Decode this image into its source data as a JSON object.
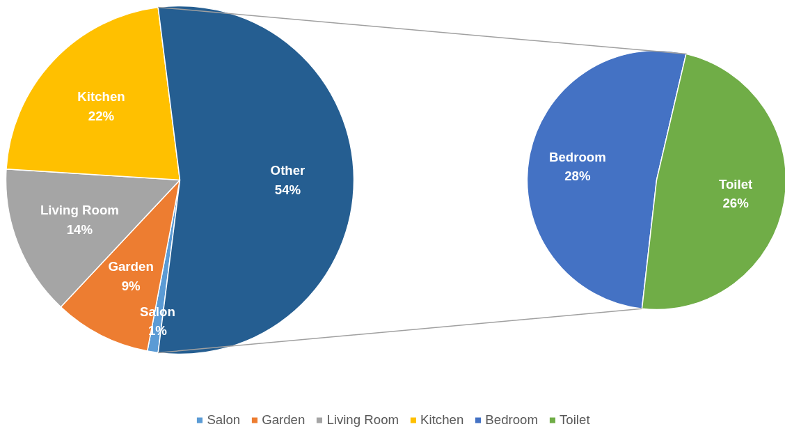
{
  "chart_data": [
    {
      "type": "pie",
      "categories": [
        "Salon",
        "Garden",
        "Living Room",
        "Kitchen",
        "Other"
      ],
      "values": [
        1,
        9,
        14,
        22,
        54
      ],
      "value_labels": [
        "1%",
        "9%",
        "14%",
        "22%",
        "54%"
      ],
      "colors": [
        "#5b9bd5",
        "#ed7d31",
        "#a5a5a5",
        "#ffc000",
        "#255e91"
      ],
      "legend": "bottom"
    },
    {
      "type": "pie",
      "categories": [
        "Bedroom",
        "Toilet"
      ],
      "values": [
        28,
        26
      ],
      "value_labels": [
        "28%",
        "26%"
      ],
      "colors": [
        "#4472c4",
        "#70ad47"
      ],
      "legend": "bottom"
    }
  ]
}
